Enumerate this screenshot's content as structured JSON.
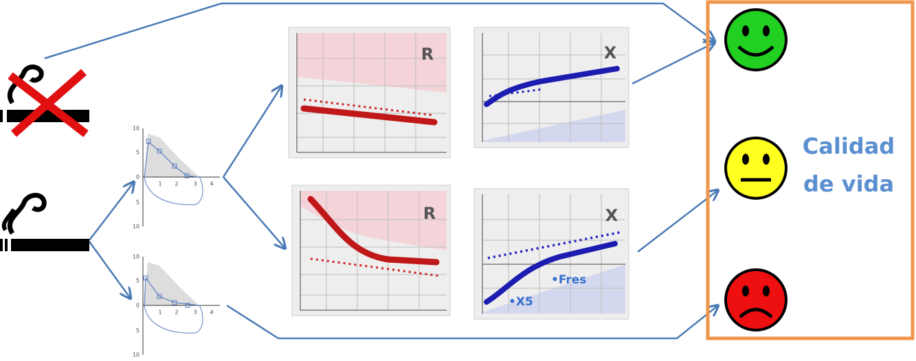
{
  "flow_volume_plots": [
    {
      "y_ticks": [
        "10",
        "5",
        "0",
        "5",
        "10"
      ],
      "x_ticks": [
        "1",
        "2",
        "3",
        "4"
      ]
    },
    {
      "y_ticks": [
        "10",
        "5",
        "0",
        "5",
        "10"
      ],
      "x_ticks": [
        "1",
        "2",
        "3",
        "4"
      ]
    }
  ],
  "panels": [
    {
      "label": "R"
    },
    {
      "label": "X"
    },
    {
      "label": "R"
    },
    {
      "label": "X",
      "annotations": [
        "•Fres",
        "•X5"
      ]
    }
  ],
  "quality": {
    "line1": "Calidad",
    "line2": "de vida"
  }
}
